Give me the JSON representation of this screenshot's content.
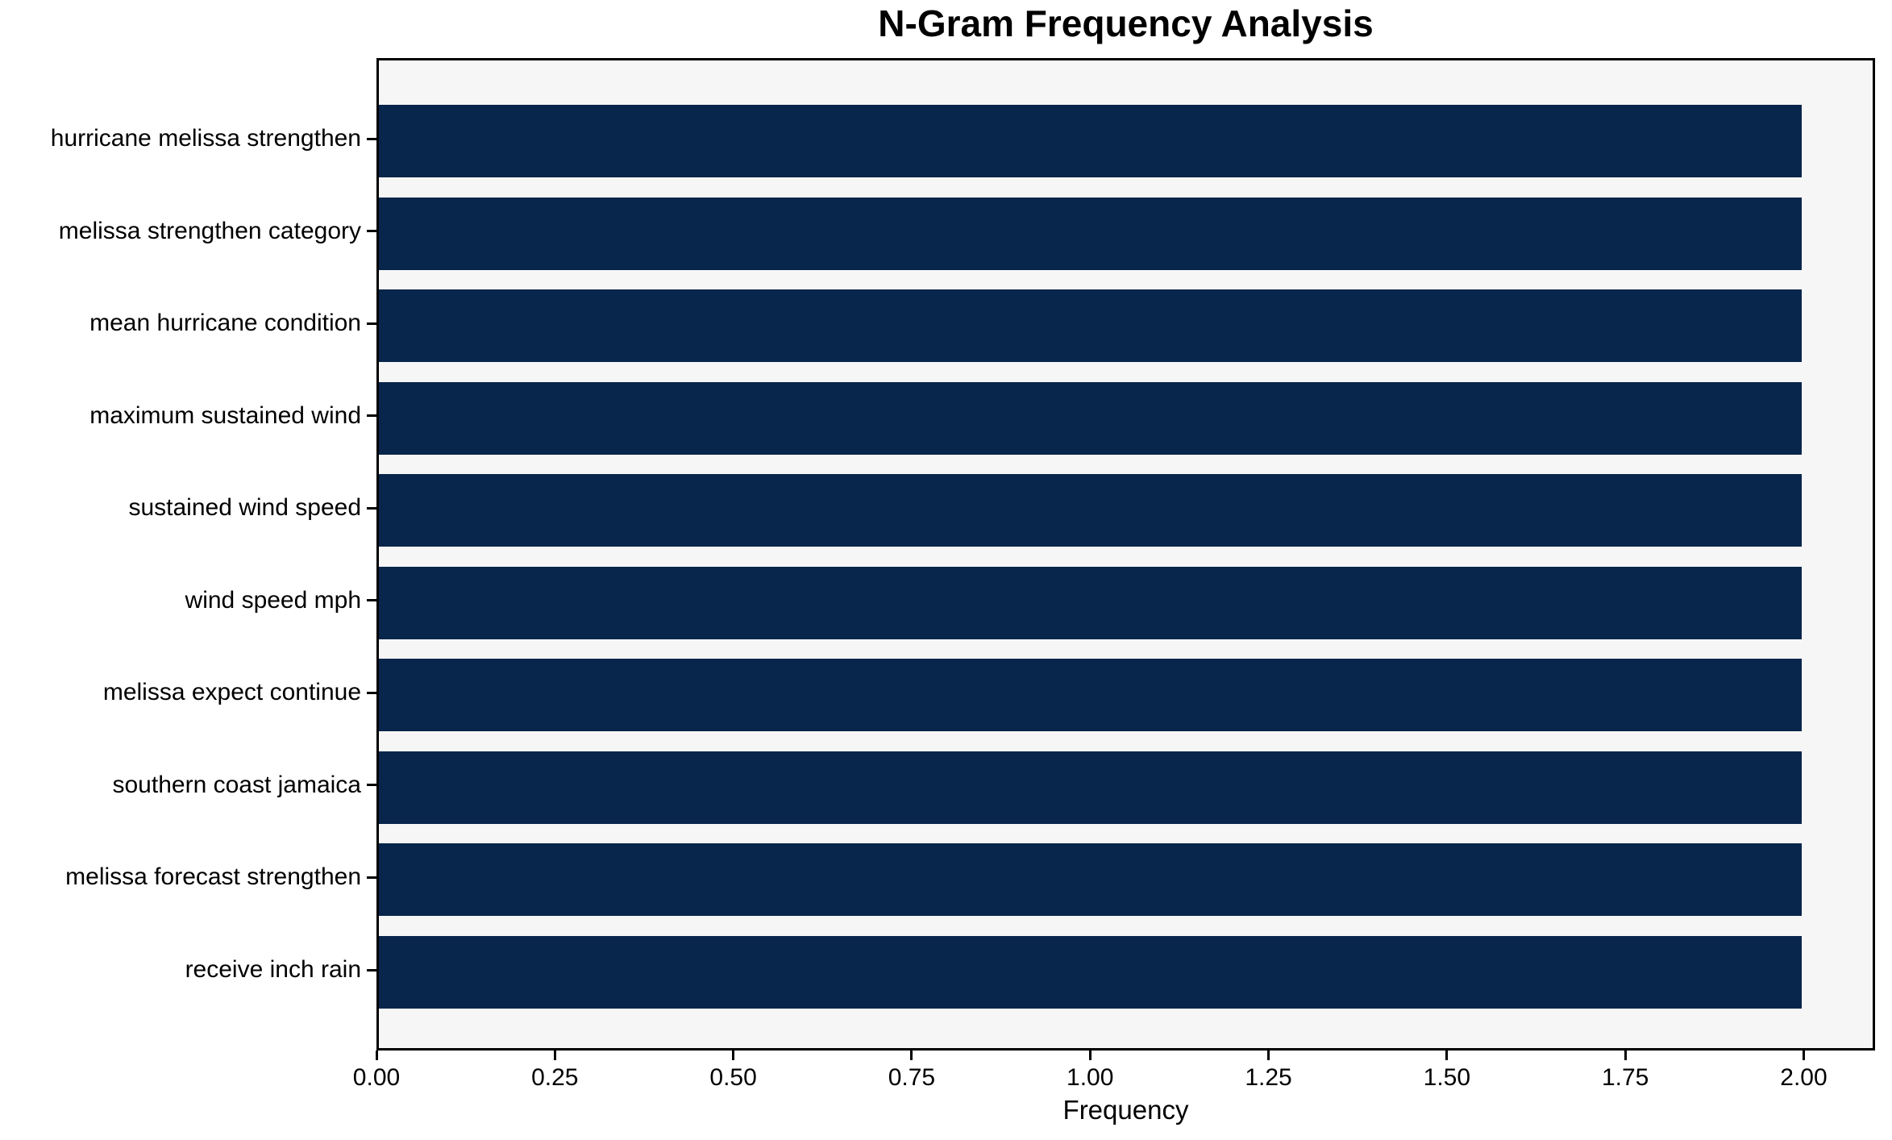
{
  "chart_data": {
    "type": "bar",
    "orientation": "horizontal",
    "title": "N-Gram Frequency Analysis",
    "xlabel": "Frequency",
    "ylabel": "",
    "categories": [
      "hurricane melissa strengthen",
      "melissa strengthen category",
      "mean hurricane condition",
      "maximum sustained wind",
      "sustained wind speed",
      "wind speed mph",
      "melissa expect continue",
      "southern coast jamaica",
      "melissa forecast strengthen",
      "receive inch rain"
    ],
    "values": [
      2,
      2,
      2,
      2,
      2,
      2,
      2,
      2,
      2,
      2
    ],
    "xlim": [
      0,
      2.1
    ],
    "x_ticks": [
      {
        "value": 0.0,
        "label": "0.00"
      },
      {
        "value": 0.25,
        "label": "0.25"
      },
      {
        "value": 0.5,
        "label": "0.50"
      },
      {
        "value": 0.75,
        "label": "0.75"
      },
      {
        "value": 1.0,
        "label": "1.00"
      },
      {
        "value": 1.25,
        "label": "1.25"
      },
      {
        "value": 1.5,
        "label": "1.50"
      },
      {
        "value": 1.75,
        "label": "1.75"
      },
      {
        "value": 2.0,
        "label": "2.00"
      }
    ],
    "grid": false,
    "legend_position": "none",
    "colors": {
      "bar": "#08254b",
      "plot_background": "#f6f6f6",
      "figure_background": "#ffffff",
      "axis": "#000000",
      "text": "#000000"
    }
  }
}
